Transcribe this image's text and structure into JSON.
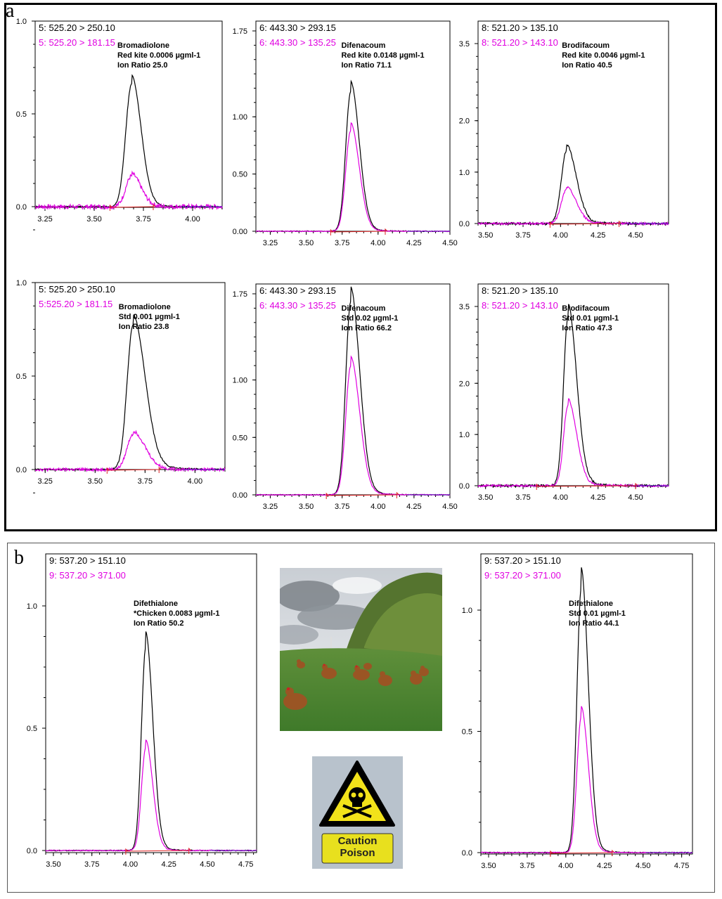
{
  "panels": {
    "a": "a",
    "b": "b"
  },
  "chart_data": [
    {
      "type": "line",
      "panel": "a",
      "row": 1,
      "col": 1,
      "channels": [
        "5: 525.20 > 250.10",
        "5: 525.20 > 181.15"
      ],
      "annotation": [
        "Bromadiolone",
        "Red kite 0.0006 µgml-1",
        "Ion Ratio 25.0"
      ],
      "xlim": [
        3.2,
        4.15
      ],
      "ylim": [
        -0.16,
        1.0
      ],
      "xticks": [
        3.25,
        3.5,
        3.75,
        4.0
      ],
      "xtick_labels": [
        "3.25",
        "3.50",
        "3.75",
        "4.00"
      ],
      "yticks": [
        0.0,
        0.5,
        1.0
      ],
      "ytick_labels": [
        "0.0",
        "0.5",
        "1.0"
      ],
      "peak": {
        "rt": 3.69,
        "width": 0.03,
        "tail": 0.03,
        "black_height": 0.66,
        "pink_height": 0.165
      },
      "baseline_range": [
        3.58,
        3.8
      ],
      "noise": {
        "black": 0.003,
        "pink": 0.012
      }
    },
    {
      "type": "line",
      "panel": "a",
      "row": 1,
      "col": 2,
      "channels": [
        "6: 443.30 > 293.15",
        "6: 443.30 > 135.25"
      ],
      "annotation": [
        "Difenacoum",
        "Red kite 0.0148 µgml-1",
        "Ion Ratio 71.1"
      ],
      "xlim": [
        3.15,
        4.5
      ],
      "ylim": [
        -0.1,
        1.75
      ],
      "xticks": [
        3.25,
        3.5,
        3.75,
        4.0,
        4.25,
        4.5
      ],
      "xtick_labels": [
        "3.25",
        "3.50",
        "3.75",
        "4.00",
        "4.25",
        "4.50"
      ],
      "yticks": [
        0.0,
        0.5,
        1.0,
        1.75
      ],
      "ytick_labels": [
        "0.00",
        "0.50",
        "1.00",
        "1.75"
      ],
      "peak": {
        "rt": 3.81,
        "width": 0.035,
        "tail": 0.04,
        "black_height": 1.22,
        "pink_height": 0.88
      },
      "baseline_range": [
        3.67,
        4.05
      ],
      "noise": {
        "black": 0.002,
        "pink": 0.002
      }
    },
    {
      "type": "line",
      "panel": "a",
      "row": 1,
      "col": 3,
      "channels": [
        "8: 521.20 > 135.10",
        "8: 521.20 > 143.10"
      ],
      "annotation": [
        "Brodifacoum",
        "Red kite 0.0046 µgml-1",
        "Ion Ratio 40.5"
      ],
      "xlim": [
        3.45,
        4.72
      ],
      "ylim": [
        -0.2,
        3.5
      ],
      "xticks": [
        3.5,
        3.75,
        4.0,
        4.25,
        4.5
      ],
      "xtick_labels": [
        "3.50",
        "3.75",
        "4.00",
        "4.25",
        "4.50"
      ],
      "yticks": [
        0.0,
        1.0,
        2.0,
        3.5
      ],
      "ytick_labels": [
        "0.0",
        "1.0",
        "2.0",
        "3.5"
      ],
      "peak": {
        "rt": 4.04,
        "width": 0.035,
        "tail": 0.05,
        "black_height": 1.42,
        "pink_height": 0.66
      },
      "baseline_range": [
        3.93,
        4.39
      ],
      "noise": {
        "black": 0.006,
        "pink": 0.006
      }
    },
    {
      "type": "line",
      "panel": "a",
      "row": 2,
      "col": 1,
      "channels": [
        "5: 525.20 > 250.10",
        "5:525.20 > 181.15"
      ],
      "annotation": [
        "Bromadiolone",
        "Std 0.001 µgml-1",
        "Ion Ratio 23.8"
      ],
      "xlim": [
        3.2,
        4.15
      ],
      "ylim": [
        -0.16,
        1.0
      ],
      "xticks": [
        3.25,
        3.5,
        3.75,
        4.0
      ],
      "xtick_labels": [
        "3.25",
        "3.50",
        "3.75",
        "4.00"
      ],
      "yticks": [
        0.0,
        0.5,
        1.0
      ],
      "ytick_labels": [
        "0.0",
        "0.5",
        "1.0"
      ],
      "peak": {
        "rt": 3.69,
        "width": 0.03,
        "tail": 0.05,
        "black_height": 0.77,
        "pink_height": 0.19
      },
      "baseline_range": [
        3.56,
        3.82
      ],
      "noise": {
        "black": 0.004,
        "pink": 0.008
      }
    },
    {
      "type": "line",
      "panel": "a",
      "row": 2,
      "col": 2,
      "channels": [
        "6: 443.30 > 293.15",
        "6: 443.30 > 135.25"
      ],
      "annotation": [
        "Difenacoum",
        "Std 0.02 µgml-1",
        "Ion Ratio 66.2"
      ],
      "xlim": [
        3.15,
        4.5
      ],
      "ylim": [
        -0.1,
        1.75
      ],
      "xticks": [
        3.25,
        3.5,
        3.75,
        4.0,
        4.25,
        4.5
      ],
      "xtick_labels": [
        "3.25",
        "3.50",
        "3.75",
        "4.00",
        "4.25",
        "4.50"
      ],
      "yticks": [
        0.0,
        0.5,
        1.0,
        1.75
      ],
      "ytick_labels": [
        "0.00",
        "0.50",
        "1.00",
        "1.75"
      ],
      "peak": {
        "rt": 3.81,
        "width": 0.035,
        "tail": 0.045,
        "black_height": 1.68,
        "pink_height": 1.12
      },
      "baseline_range": [
        3.64,
        4.13
      ],
      "noise": {
        "black": 0.002,
        "pink": 0.002
      }
    },
    {
      "type": "line",
      "panel": "a",
      "row": 2,
      "col": 3,
      "channels": [
        "8: 521.20 > 135.10",
        "8: 521.20 > 143.10"
      ],
      "annotation": [
        "Brodifacoum",
        "Std 0.01 µgml-1",
        "Ion Ratio 47.3"
      ],
      "xlim": [
        3.45,
        4.72
      ],
      "ylim": [
        -0.2,
        3.5
      ],
      "xticks": [
        3.5,
        3.75,
        4.0,
        4.25,
        4.5
      ],
      "xtick_labels": [
        "3.50",
        "3.75",
        "4.00",
        "4.25",
        "4.50"
      ],
      "yticks": [
        0.0,
        1.0,
        2.0,
        3.5
      ],
      "ytick_labels": [
        "0.0",
        "1.0",
        "2.0",
        "3.5"
      ],
      "peak": {
        "rt": 4.05,
        "width": 0.03,
        "tail": 0.045,
        "black_height": 3.3,
        "pink_height": 1.57
      },
      "baseline_range": [
        3.84,
        4.5
      ],
      "noise": {
        "black": 0.006,
        "pink": 0.006
      }
    },
    {
      "type": "line",
      "panel": "b",
      "row": 1,
      "col": 1,
      "channels": [
        "9: 537.20 > 151.10",
        "9: 537.20 > 371.00"
      ],
      "annotation": [
        "Difethialone",
        "*Chicken 0.0083 µgml-1",
        "Ion Ratio 50.2"
      ],
      "xlim": [
        3.45,
        4.82
      ],
      "ylim": [
        -0.07,
        1.2
      ],
      "xticks": [
        3.5,
        3.75,
        4.0,
        4.25,
        4.5,
        4.75
      ],
      "xtick_labels": [
        "3.50",
        "3.75",
        "4.00",
        "4.25",
        "4.50",
        "4.75"
      ],
      "yticks": [
        0.0,
        0.5,
        1.0
      ],
      "ytick_labels": [
        "0.0",
        "0.5",
        "1.0"
      ],
      "peak": {
        "rt": 4.1,
        "width": 0.028,
        "tail": 0.03,
        "black_height": 0.83,
        "pink_height": 0.42
      },
      "baseline_range": [
        3.97,
        4.38
      ],
      "noise": {
        "black": 0.002,
        "pink": 0.002
      }
    },
    {
      "type": "line",
      "panel": "b",
      "row": 1,
      "col": 2,
      "channels": [
        "9: 537.20 > 151.10",
        "9: 537.20 > 371.00"
      ],
      "annotation": [
        "Difethialone",
        "Std 0.01 µgml-1",
        "Ion Ratio 44.1"
      ],
      "xlim": [
        3.45,
        4.82
      ],
      "ylim": [
        -0.07,
        1.2
      ],
      "xticks": [
        3.5,
        3.75,
        4.0,
        4.25,
        4.5,
        4.75
      ],
      "xtick_labels": [
        "3.50",
        "3.75",
        "4.00",
        "4.25",
        "4.50",
        "4.75"
      ],
      "yticks": [
        0.0,
        0.5,
        1.0
      ],
      "ytick_labels": [
        "0.0",
        "0.5",
        "1.0"
      ],
      "peak": {
        "rt": 4.1,
        "width": 0.028,
        "tail": 0.03,
        "black_height": 1.09,
        "pink_height": 0.56
      },
      "baseline_range": [
        3.9,
        4.3
      ],
      "noise": {
        "black": 0.002,
        "pink": 0.002
      }
    }
  ],
  "sign": {
    "line1": "Caution",
    "line2": "Poison"
  },
  "colors": {
    "black_trace": "#000000",
    "pink_trace": "#e000e0",
    "baseline": "#dd2222",
    "noise_blue": "#2233cc"
  }
}
